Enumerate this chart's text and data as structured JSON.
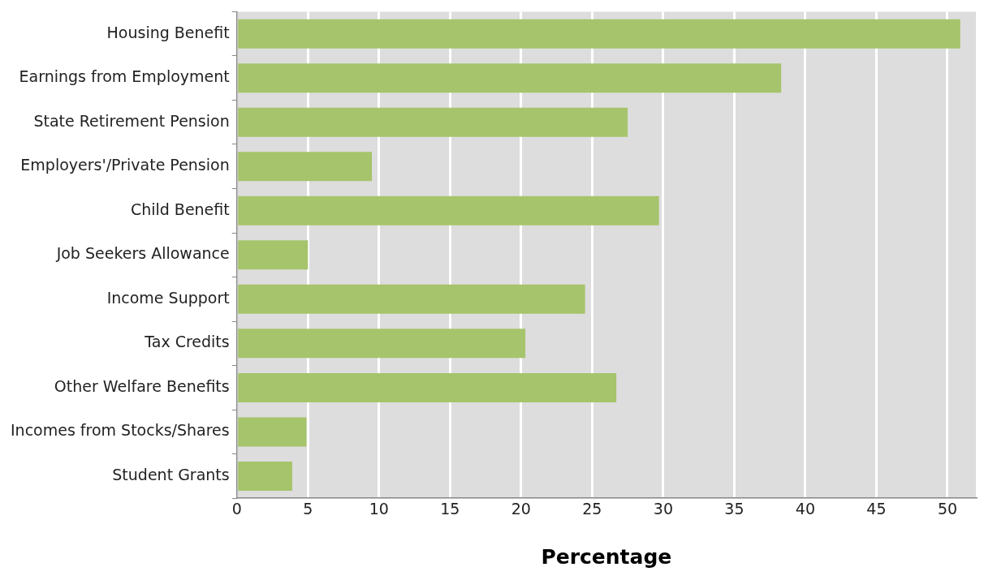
{
  "chart_data": {
    "type": "bar",
    "orientation": "horizontal",
    "xlabel": "Percentage",
    "categories": [
      "Housing Benefit",
      "Earnings from Employment",
      "State Retirement Pension",
      "Employers'/Private Pension",
      "Child Benefit",
      "Job Seekers Allowance",
      "Income Support",
      "Tax Credits",
      "Other Welfare Benefits",
      "Incomes from Stocks/Shares",
      "Student Grants"
    ],
    "values": [
      50.9,
      38.3,
      27.5,
      9.5,
      29.7,
      5.0,
      24.5,
      20.3,
      26.7,
      4.9,
      3.9
    ],
    "color": "#a6c46b",
    "xlim": [
      0,
      52
    ],
    "xticks": [
      0,
      5,
      10,
      15,
      20,
      25,
      30,
      35,
      40,
      45,
      50
    ],
    "grid": "x",
    "legend": false
  }
}
